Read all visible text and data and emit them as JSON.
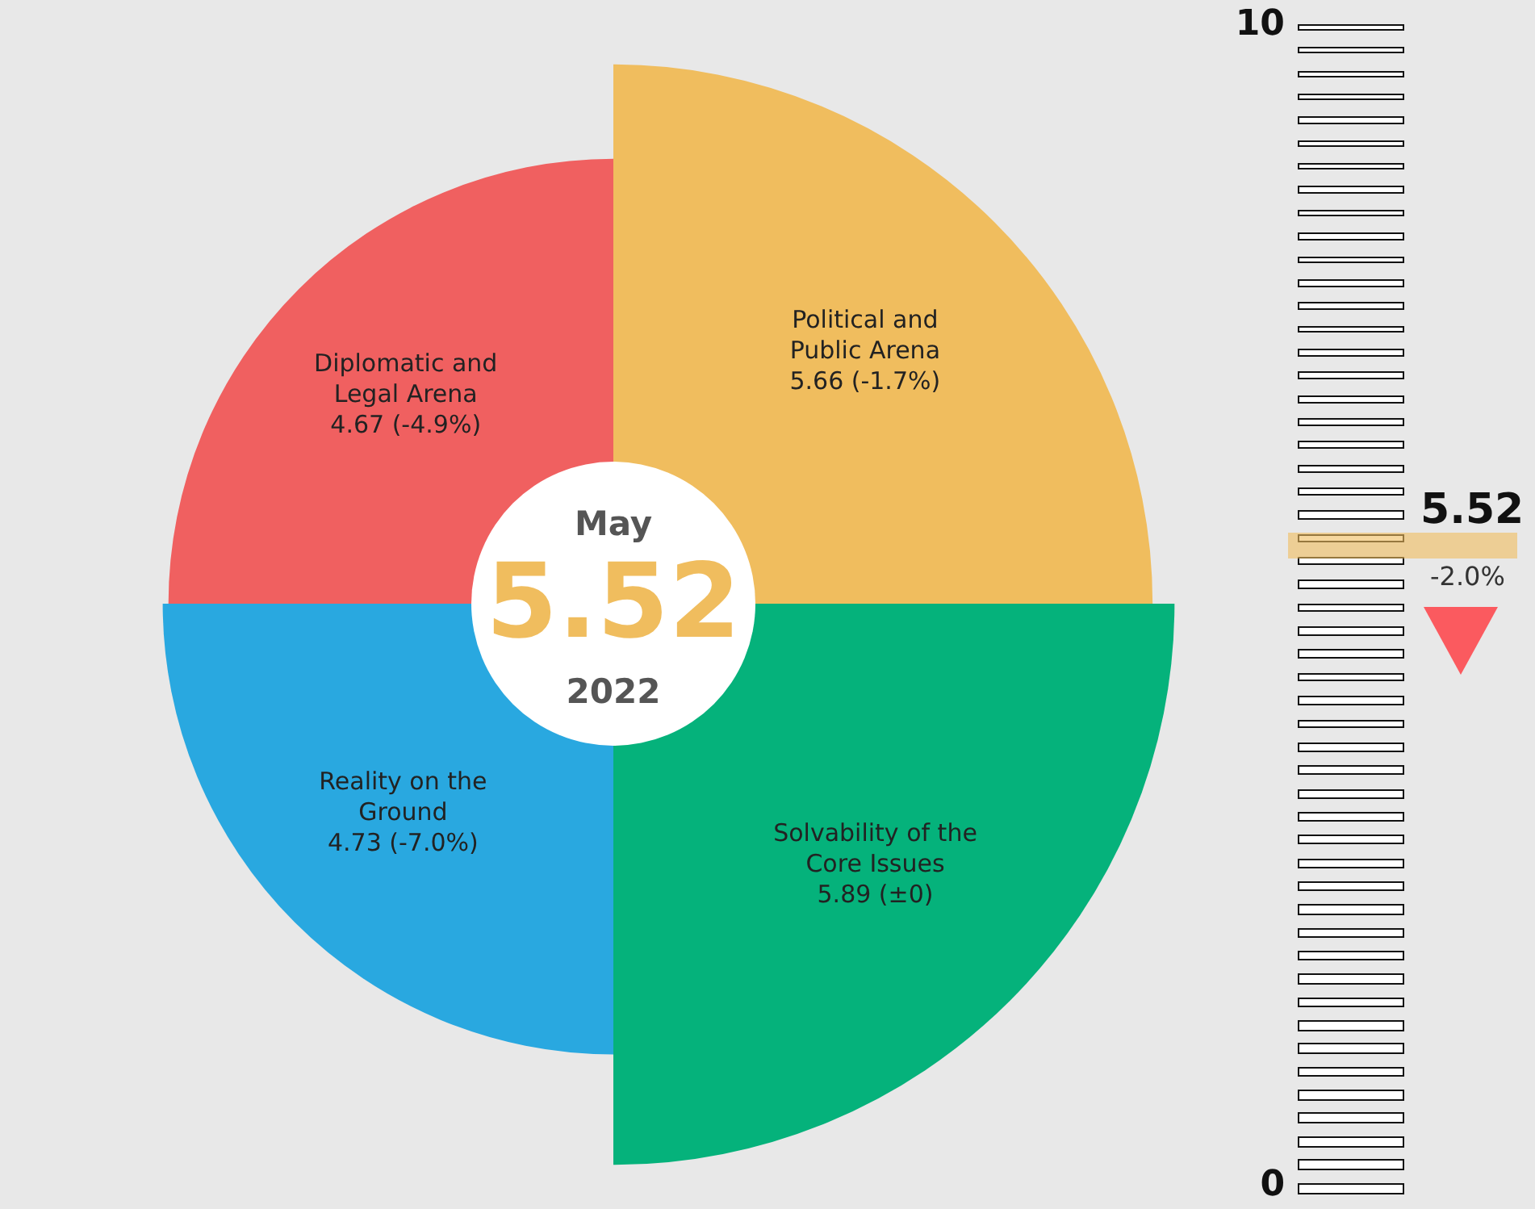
{
  "chart_data": [
    {
      "type": "other",
      "categories": [
        "Political and Public Arena",
        "Solvability of the Core Issues",
        "Reality on the Ground",
        "Diplomatic and Legal Arena"
      ],
      "values": [
        5.66,
        5.89,
        4.73,
        4.67
      ],
      "colors": [
        "#f0bd5e",
        "#05b27b",
        "#29a8e0",
        "#f06060"
      ],
      "value_labels": [
        "5.66 (-1.7%)",
        "5.89 (±0)",
        "4.73 (-7.0%)",
        "4.67 (-4.9%)"
      ],
      "annotations": [
        "May",
        "5.52",
        "2022"
      ]
    },
    {
      "type": "other",
      "annotations": [
        "10",
        "0",
        "5.52",
        "-2.0%"
      ],
      "color": "#f0bd5e"
    }
  ]
}
